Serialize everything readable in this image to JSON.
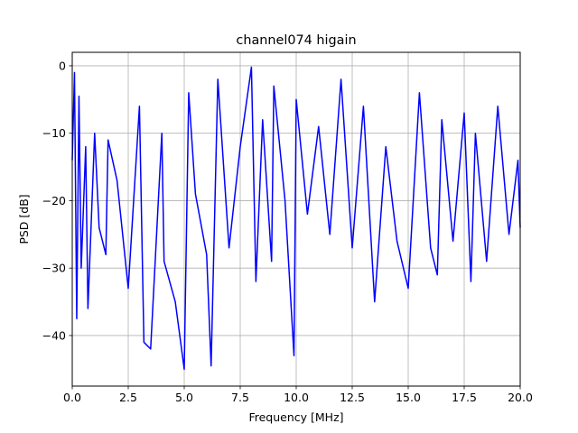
{
  "chart_data": {
    "type": "line",
    "title": "channel074 higain",
    "xlabel": "Frequency [MHz]",
    "ylabel": "PSD [dB]",
    "xlim": [
      0,
      20
    ],
    "ylim": [
      -47.5,
      2
    ],
    "x_ticks": [
      "0.0",
      "2.5",
      "5.0",
      "7.5",
      "10.0",
      "12.5",
      "15.0",
      "17.5",
      "20.0"
    ],
    "y_ticks": [
      "0",
      "−10",
      "−20",
      "−30",
      "−40"
    ],
    "x_tick_values": [
      0,
      2.5,
      5,
      7.5,
      10,
      12.5,
      15,
      17.5,
      20
    ],
    "y_tick_values": [
      0,
      -10,
      -20,
      -30,
      -40
    ],
    "grid": true,
    "series_color": "#0000ff",
    "series": [
      {
        "x": [
          0.0,
          0.1,
          0.2,
          0.3,
          0.4,
          0.6,
          0.7,
          1.0,
          1.2,
          1.5,
          1.6,
          2.0,
          2.5,
          3.0,
          3.2,
          3.5,
          4.0,
          4.1,
          4.6,
          5.0,
          5.2,
          5.5,
          6.0,
          6.2,
          6.5,
          7.0,
          7.5,
          8.0,
          8.2,
          8.5,
          8.9,
          9.0,
          9.5,
          9.9,
          10.0,
          10.5,
          11.0,
          11.5,
          12.0,
          12.5,
          13.0,
          13.5,
          14.0,
          14.5,
          15.0,
          15.5,
          16.0,
          16.3,
          16.5,
          17.0,
          17.5,
          17.8,
          18.0,
          18.5,
          19.0,
          19.5,
          19.9,
          20.0
        ],
        "y": [
          -14,
          -1,
          -37.5,
          -4.5,
          -30,
          -12,
          -36,
          -10,
          -24,
          -28,
          -11,
          -17,
          -33,
          -6,
          -41,
          -42,
          -10,
          -29,
          -35,
          -45,
          -4,
          -19,
          -28,
          -44.5,
          -2,
          -27,
          -12,
          -0.2,
          -32,
          -8,
          -29,
          -3,
          -20,
          -43,
          -5,
          -22,
          -9,
          -25,
          -2,
          -27,
          -6,
          -35,
          -12,
          -26,
          -33,
          -4,
          -27,
          -31,
          -8,
          -26,
          -7,
          -32,
          -10,
          -29,
          -6,
          -25,
          -14,
          -24
        ]
      }
    ]
  }
}
